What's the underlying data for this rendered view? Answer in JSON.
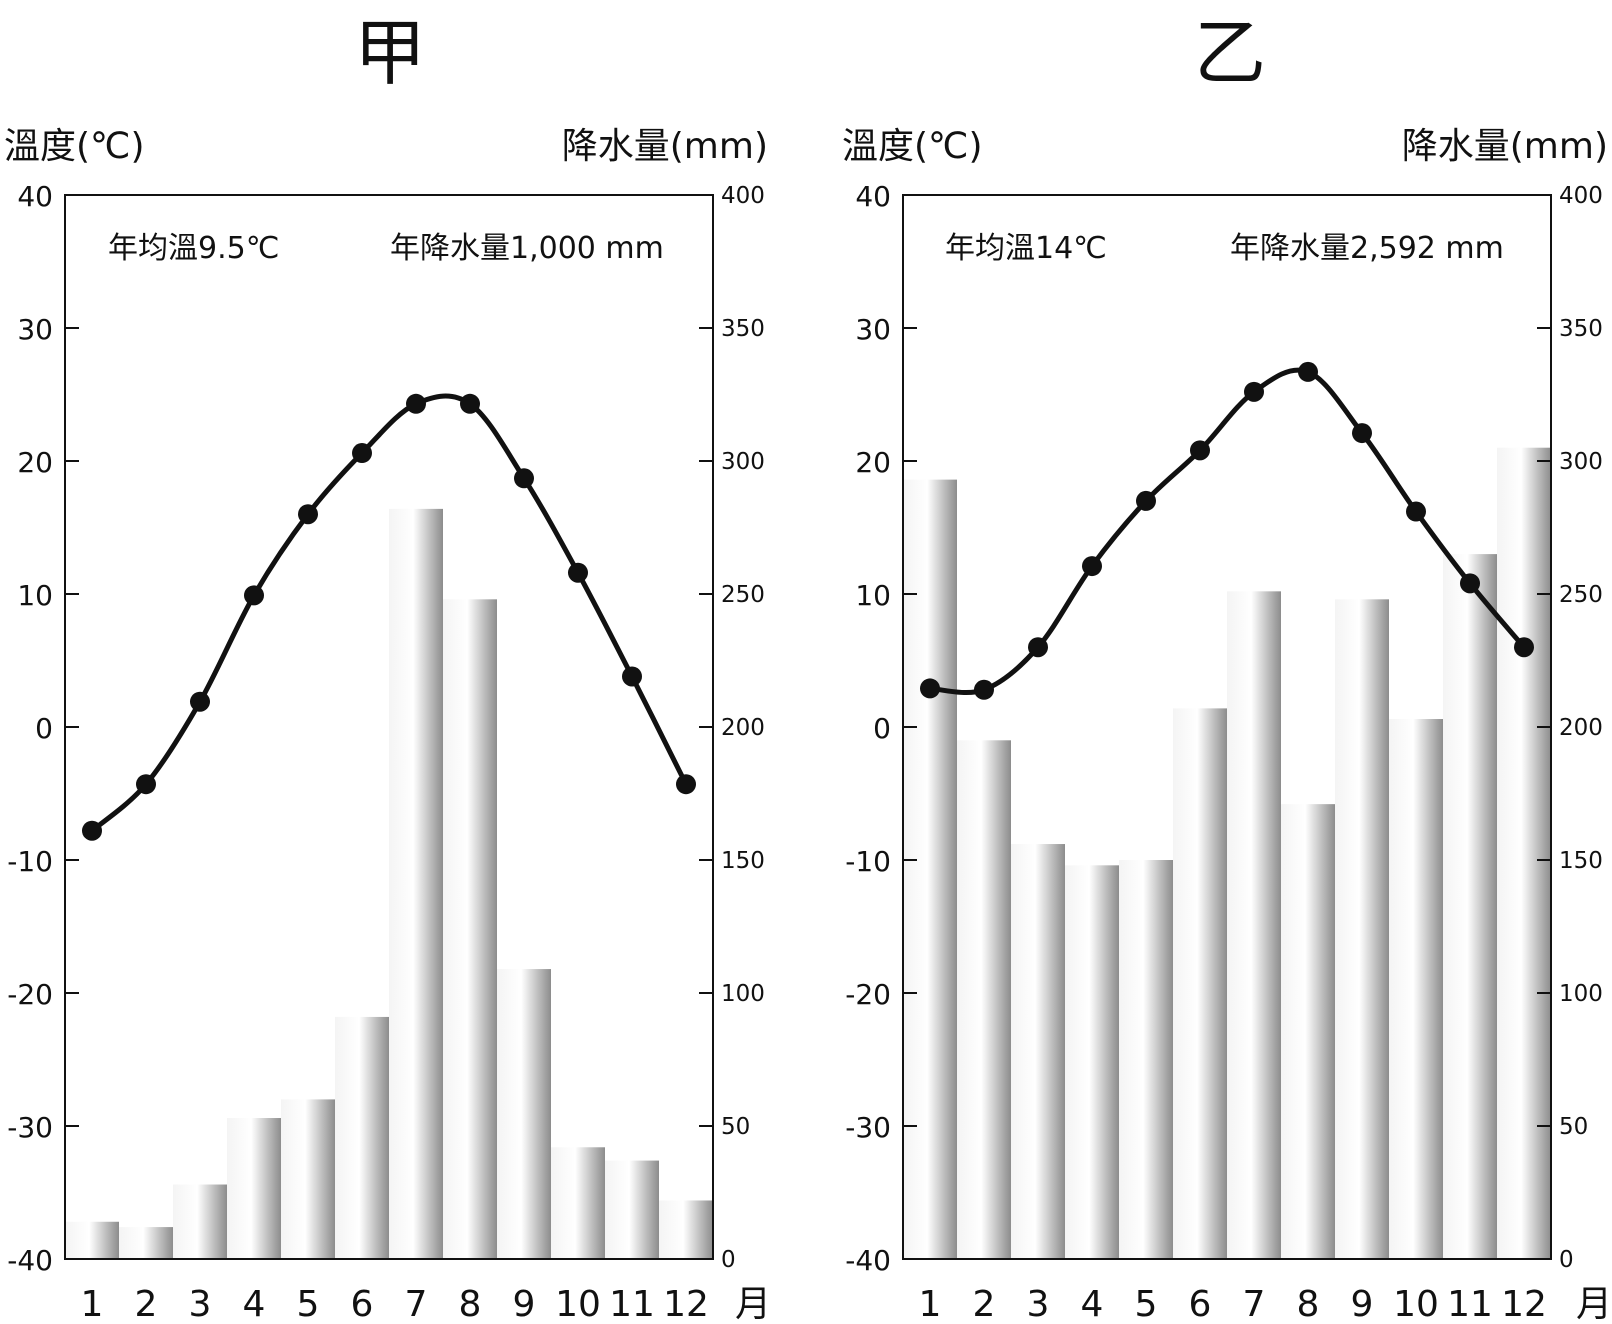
{
  "chart_data": [
    {
      "type": "bar+line",
      "title": "甲",
      "ylabel_left": "溫度(℃)",
      "ylabel_right": "降水量(mm)",
      "xlabel": "月",
      "left_ticks": [
        "40",
        "30",
        "20",
        "10",
        "0",
        "-10",
        "-20",
        "-30",
        "-40"
      ],
      "right_ticks": [
        "400",
        "350",
        "300",
        "250",
        "200",
        "150",
        "100",
        "50",
        "0"
      ],
      "categories": [
        "1",
        "2",
        "3",
        "4",
        "5",
        "6",
        "7",
        "8",
        "9",
        "10",
        "11",
        "12"
      ],
      "temp_ylim": [
        -40,
        40
      ],
      "precip_ylim": [
        0,
        400
      ],
      "annotation_temp": "年均溫9.5℃",
      "annotation_precip": "年降水量1,000 mm",
      "temperature": [
        -7.8,
        -4.3,
        1.9,
        9.9,
        16.0,
        20.6,
        24.3,
        24.3,
        18.7,
        11.6,
        3.8,
        -4.3
      ],
      "precipitation": [
        14,
        12,
        28,
        53,
        60,
        91,
        282,
        248,
        109,
        42,
        37,
        22
      ],
      "colors": {
        "line": "#111111",
        "bar_dark": "#8c8c8c",
        "bar_light": "#f4f4f4"
      }
    },
    {
      "type": "bar+line",
      "title": "乙",
      "ylabel_left": "溫度(℃)",
      "ylabel_right": "降水量(mm)",
      "xlabel": "月",
      "left_ticks": [
        "40",
        "30",
        "20",
        "10",
        "0",
        "-10",
        "-20",
        "-30",
        "-40"
      ],
      "right_ticks": [
        "400",
        "350",
        "300",
        "250",
        "200",
        "150",
        "100",
        "50",
        "0"
      ],
      "categories": [
        "1",
        "2",
        "3",
        "4",
        "5",
        "6",
        "7",
        "8",
        "9",
        "10",
        "11",
        "12"
      ],
      "temp_ylim": [
        -40,
        40
      ],
      "precip_ylim": [
        0,
        400
      ],
      "annotation_temp": "年均溫14℃",
      "annotation_precip": "年降水量2,592 mm",
      "temperature": [
        2.9,
        2.8,
        6.0,
        12.1,
        17.0,
        20.8,
        25.2,
        26.7,
        22.1,
        16.2,
        10.8,
        6.0
      ],
      "precipitation": [
        293,
        195,
        156,
        148,
        150,
        207,
        251,
        171,
        248,
        203,
        265,
        305
      ],
      "colors": {
        "line": "#111111",
        "bar_dark": "#8c8c8c",
        "bar_light": "#f4f4f4"
      }
    }
  ]
}
